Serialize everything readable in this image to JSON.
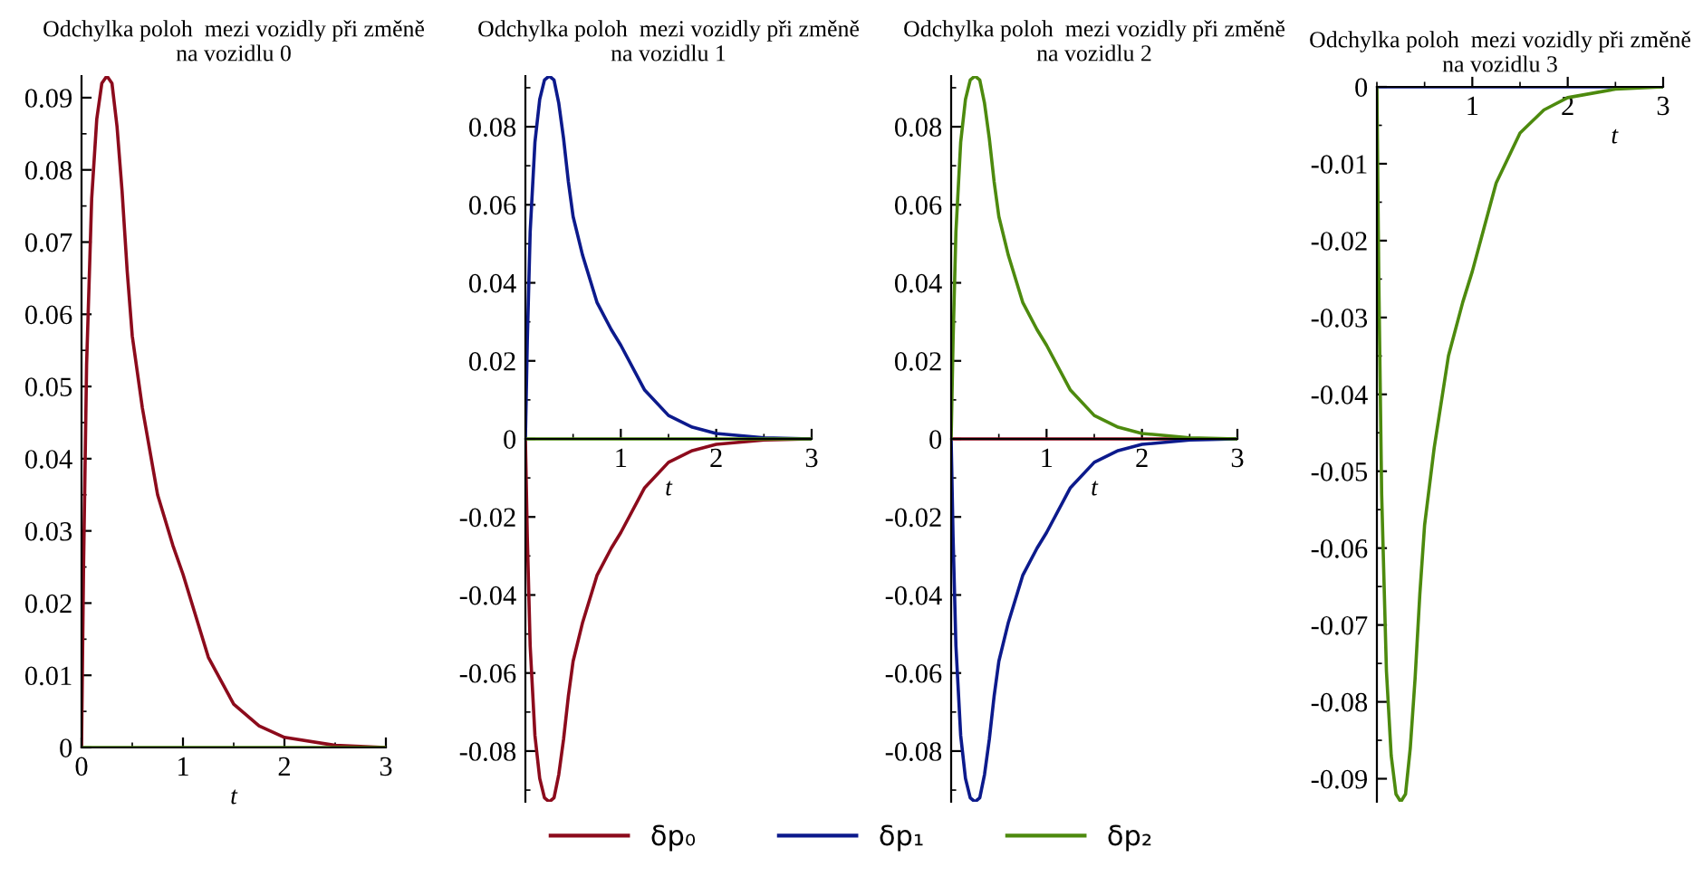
{
  "chart_data": [
    {
      "type": "line",
      "title": "Odchylka poloh  mezi vozidly při změně\nna vozidlu 0",
      "xlabel": "t",
      "xlim": [
        0,
        3
      ],
      "xticks": [
        0,
        1,
        2,
        3
      ],
      "ylim": [
        0,
        0.093
      ],
      "yticks": [
        0,
        0.01,
        0.02,
        0.03,
        0.04,
        0.05,
        0.06,
        0.07,
        0.08,
        0.09
      ],
      "legend": "bottom",
      "x": [
        0,
        0.02,
        0.05,
        0.1,
        0.15,
        0.2,
        0.25,
        0.3,
        0.35,
        0.4,
        0.45,
        0.5,
        0.6,
        0.75,
        0.9,
        1.0,
        1.25,
        1.5,
        1.75,
        2.0,
        2.5,
        3.0
      ],
      "series": [
        {
          "name": "δp₀",
          "color": "#8c0b1c",
          "values": [
            0,
            0.025,
            0.053,
            0.076,
            0.087,
            0.092,
            0.093,
            0.092,
            0.086,
            0.077,
            0.066,
            0.057,
            0.047,
            0.035,
            0.028,
            0.024,
            0.0125,
            0.006,
            0.003,
            0.0014,
            0.0003,
            0
          ]
        },
        {
          "name": "δp₁",
          "color": "#0c1a8c",
          "values": [
            null,
            null,
            null,
            null,
            null,
            null,
            null,
            null,
            null,
            null,
            null,
            null,
            null,
            null,
            null,
            null,
            null,
            null,
            null,
            null,
            null,
            null
          ]
        },
        {
          "name": "δp₂",
          "color": "#4d8a0e",
          "values": [
            0,
            0,
            0,
            0,
            0,
            0,
            0,
            0,
            0,
            0,
            0,
            0,
            0,
            0,
            0,
            0,
            0,
            0,
            0,
            0,
            0,
            0
          ]
        }
      ]
    },
    {
      "type": "line",
      "title": "Odchylka poloh  mezi vozidly při změně\nna vozidlu 1",
      "xlabel": "t",
      "xlim": [
        0,
        3
      ],
      "xticks": [
        1,
        2,
        3
      ],
      "ylim": [
        -0.093,
        0.093
      ],
      "yticks": [
        -0.08,
        -0.06,
        -0.04,
        -0.02,
        0,
        0.02,
        0.04,
        0.06,
        0.08
      ],
      "x": [
        0,
        0.02,
        0.05,
        0.1,
        0.15,
        0.2,
        0.25,
        0.3,
        0.35,
        0.4,
        0.45,
        0.5,
        0.6,
        0.75,
        0.9,
        1.0,
        1.25,
        1.5,
        1.75,
        2.0,
        2.5,
        3.0
      ],
      "series": [
        {
          "color": "#8c0b1c",
          "values": [
            0,
            -0.025,
            -0.053,
            -0.076,
            -0.087,
            -0.092,
            -0.093,
            -0.092,
            -0.086,
            -0.077,
            -0.066,
            -0.057,
            -0.047,
            -0.035,
            -0.028,
            -0.024,
            -0.0125,
            -0.006,
            -0.003,
            -0.0014,
            -0.0003,
            0
          ]
        },
        {
          "color": "#0c1a8c",
          "values": [
            0,
            0.025,
            0.053,
            0.076,
            0.087,
            0.092,
            0.093,
            0.092,
            0.086,
            0.077,
            0.066,
            0.057,
            0.047,
            0.035,
            0.028,
            0.024,
            0.0125,
            0.006,
            0.003,
            0.0014,
            0.0003,
            0
          ]
        },
        {
          "color": "#4d8a0e",
          "values": [
            0,
            0,
            0,
            0,
            0,
            0,
            0,
            0,
            0,
            0,
            0,
            0,
            0,
            0,
            0,
            0,
            0,
            0,
            0,
            0,
            0,
            0
          ]
        }
      ]
    },
    {
      "type": "line",
      "title": "Odchylka poloh  mezi vozidly při změně\nna vozidlu 2",
      "xlabel": "t",
      "xlim": [
        0,
        3
      ],
      "xticks": [
        1,
        2,
        3
      ],
      "ylim": [
        -0.093,
        0.093
      ],
      "yticks": [
        -0.08,
        -0.06,
        -0.04,
        -0.02,
        0,
        0.02,
        0.04,
        0.06,
        0.08
      ],
      "x": [
        0,
        0.02,
        0.05,
        0.1,
        0.15,
        0.2,
        0.25,
        0.3,
        0.35,
        0.4,
        0.45,
        0.5,
        0.6,
        0.75,
        0.9,
        1.0,
        1.25,
        1.5,
        1.75,
        2.0,
        2.5,
        3.0
      ],
      "series": [
        {
          "color": "#8c0b1c",
          "values": [
            0,
            0,
            0,
            0,
            0,
            0,
            0,
            0,
            0,
            0,
            0,
            0,
            0,
            0,
            0,
            0,
            0,
            0,
            0,
            0,
            0,
            0
          ]
        },
        {
          "color": "#0c1a8c",
          "values": [
            0,
            -0.025,
            -0.053,
            -0.076,
            -0.087,
            -0.092,
            -0.093,
            -0.092,
            -0.086,
            -0.077,
            -0.066,
            -0.057,
            -0.047,
            -0.035,
            -0.028,
            -0.024,
            -0.0125,
            -0.006,
            -0.003,
            -0.0014,
            -0.0003,
            0
          ]
        },
        {
          "color": "#4d8a0e",
          "values": [
            0,
            0.025,
            0.053,
            0.076,
            0.087,
            0.092,
            0.093,
            0.092,
            0.086,
            0.077,
            0.066,
            0.057,
            0.047,
            0.035,
            0.028,
            0.024,
            0.0125,
            0.006,
            0.003,
            0.0014,
            0.0003,
            0
          ]
        }
      ]
    },
    {
      "type": "line",
      "title": "Odchylka poloh  mezi vozidly při změně\nna vozidlu 3",
      "xlabel": "t",
      "xlim": [
        0,
        3
      ],
      "xticks": [
        1,
        2,
        3
      ],
      "ylim": [
        -0.093,
        0
      ],
      "yticks": [
        -0.09,
        -0.08,
        -0.07,
        -0.06,
        -0.05,
        -0.04,
        -0.03,
        -0.02,
        -0.01,
        0
      ],
      "x": [
        0,
        0.02,
        0.05,
        0.1,
        0.15,
        0.2,
        0.25,
        0.3,
        0.35,
        0.4,
        0.45,
        0.5,
        0.6,
        0.75,
        0.9,
        1.0,
        1.25,
        1.5,
        1.75,
        2.0,
        2.5,
        3.0
      ],
      "series": [
        {
          "color": "#8c0b1c",
          "values": [
            null,
            null,
            null,
            null,
            null,
            null,
            null,
            null,
            null,
            null,
            null,
            null,
            null,
            null,
            null,
            null,
            null,
            null,
            null,
            null,
            null,
            null
          ]
        },
        {
          "color": "#0c1a8c",
          "values": [
            0,
            0,
            0,
            0,
            0,
            0,
            0,
            0,
            0,
            0,
            0,
            0,
            0,
            0,
            0,
            0,
            0,
            0,
            0,
            0,
            0,
            0
          ]
        },
        {
          "color": "#4d8a0e",
          "values": [
            0,
            -0.025,
            -0.053,
            -0.076,
            -0.087,
            -0.092,
            -0.093,
            -0.092,
            -0.086,
            -0.077,
            -0.066,
            -0.057,
            -0.047,
            -0.035,
            -0.028,
            -0.024,
            -0.0125,
            -0.006,
            -0.003,
            -0.0014,
            -0.0003,
            0
          ]
        }
      ]
    }
  ]
}
